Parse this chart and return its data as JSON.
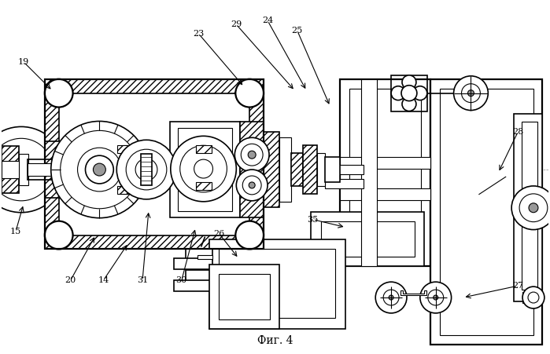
{
  "caption": "Фиг. 4",
  "bg_color": "#ffffff",
  "line_color": "#000000",
  "figsize": [
    6.99,
    4.51
  ],
  "dpi": 100,
  "image_b64": ""
}
